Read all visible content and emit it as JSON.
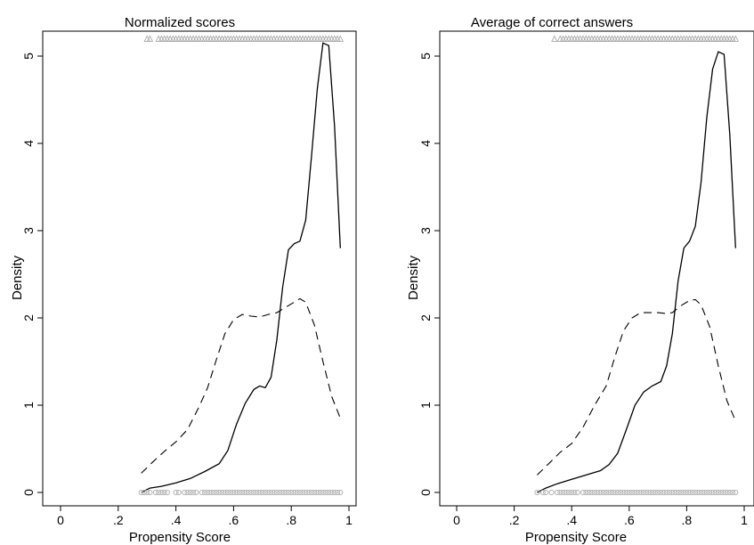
{
  "chart_data": [
    {
      "type": "line",
      "title": "Normalized scores",
      "xlabel": "Propensity Score",
      "ylabel": "Density",
      "xlim": [
        0,
        1
      ],
      "ylim": [
        0,
        5
      ],
      "x_ticks": [
        "0",
        ".2",
        ".4",
        ".6",
        ".8",
        "1"
      ],
      "y_ticks": [
        "0",
        "1",
        "2",
        "3",
        "4",
        "5"
      ],
      "grid": false,
      "series": [
        {
          "style": "solid",
          "points": [
            [
              0.28,
              0.0
            ],
            [
              0.31,
              0.05
            ],
            [
              0.35,
              0.07
            ],
            [
              0.4,
              0.11
            ],
            [
              0.45,
              0.16
            ],
            [
              0.5,
              0.24
            ],
            [
              0.55,
              0.33
            ],
            [
              0.58,
              0.48
            ],
            [
              0.61,
              0.78
            ],
            [
              0.64,
              1.02
            ],
            [
              0.67,
              1.18
            ],
            [
              0.69,
              1.22
            ],
            [
              0.71,
              1.2
            ],
            [
              0.73,
              1.32
            ],
            [
              0.75,
              1.75
            ],
            [
              0.77,
              2.35
            ],
            [
              0.79,
              2.78
            ],
            [
              0.81,
              2.85
            ],
            [
              0.83,
              2.88
            ],
            [
              0.85,
              3.12
            ],
            [
              0.87,
              3.85
            ],
            [
              0.89,
              4.62
            ],
            [
              0.91,
              5.15
            ],
            [
              0.93,
              5.12
            ],
            [
              0.95,
              4.2
            ],
            [
              0.97,
              2.8
            ]
          ]
        },
        {
          "style": "dashed",
          "points": [
            [
              0.28,
              0.22
            ],
            [
              0.32,
              0.35
            ],
            [
              0.36,
              0.47
            ],
            [
              0.4,
              0.58
            ],
            [
              0.44,
              0.72
            ],
            [
              0.48,
              0.98
            ],
            [
              0.51,
              1.2
            ],
            [
              0.54,
              1.52
            ],
            [
              0.57,
              1.82
            ],
            [
              0.6,
              1.98
            ],
            [
              0.63,
              2.04
            ],
            [
              0.66,
              2.02
            ],
            [
              0.69,
              2.01
            ],
            [
              0.72,
              2.04
            ],
            [
              0.75,
              2.06
            ],
            [
              0.78,
              2.12
            ],
            [
              0.81,
              2.18
            ],
            [
              0.83,
              2.22
            ],
            [
              0.85,
              2.18
            ],
            [
              0.88,
              1.92
            ],
            [
              0.91,
              1.5
            ],
            [
              0.94,
              1.1
            ],
            [
              0.97,
              0.85
            ]
          ]
        }
      ],
      "rug_top": {
        "marker": "triangle",
        "y": 5.2,
        "x": [
          0.3,
          0.31,
          0.34,
          0.35,
          0.36,
          0.37,
          0.38,
          0.39,
          0.4,
          0.41,
          0.42,
          0.43,
          0.44,
          0.45,
          0.46,
          0.47,
          0.48,
          0.49,
          0.5,
          0.51,
          0.52,
          0.53,
          0.54,
          0.55,
          0.56,
          0.57,
          0.58,
          0.59,
          0.6,
          0.61,
          0.62,
          0.63,
          0.64,
          0.65,
          0.66,
          0.67,
          0.68,
          0.69,
          0.7,
          0.71,
          0.72,
          0.73,
          0.74,
          0.75,
          0.76,
          0.77,
          0.78,
          0.79,
          0.8,
          0.81,
          0.82,
          0.83,
          0.84,
          0.85,
          0.86,
          0.87,
          0.88,
          0.89,
          0.9,
          0.91,
          0.92,
          0.93,
          0.94,
          0.95,
          0.96,
          0.97
        ]
      },
      "rug_bottom": {
        "marker": "circle",
        "y": 0.0,
        "x": [
          0.28,
          0.29,
          0.3,
          0.31,
          0.33,
          0.34,
          0.35,
          0.36,
          0.37,
          0.4,
          0.41,
          0.43,
          0.44,
          0.45,
          0.46,
          0.47,
          0.49,
          0.5,
          0.51,
          0.52,
          0.53,
          0.54,
          0.55,
          0.56,
          0.57,
          0.58,
          0.59,
          0.6,
          0.61,
          0.62,
          0.63,
          0.64,
          0.65,
          0.66,
          0.67,
          0.68,
          0.69,
          0.7,
          0.71,
          0.72,
          0.73,
          0.74,
          0.75,
          0.76,
          0.77,
          0.78,
          0.79,
          0.8,
          0.81,
          0.82,
          0.83,
          0.84,
          0.85,
          0.86,
          0.87,
          0.88,
          0.89,
          0.9,
          0.91,
          0.92,
          0.93,
          0.94,
          0.95,
          0.96,
          0.97
        ]
      }
    },
    {
      "type": "line",
      "title": "Average of correct answers",
      "xlabel": "Propensity Score",
      "ylabel": "Density",
      "xlim": [
        0,
        1
      ],
      "ylim": [
        0,
        5
      ],
      "x_ticks": [
        "0",
        ".2",
        ".4",
        ".6",
        ".8",
        "1"
      ],
      "y_ticks": [
        "0",
        "1",
        "2",
        "3",
        "4",
        "5"
      ],
      "grid": false,
      "series": [
        {
          "style": "solid",
          "points": [
            [
              0.28,
              0.0
            ],
            [
              0.31,
              0.05
            ],
            [
              0.35,
              0.1
            ],
            [
              0.4,
              0.15
            ],
            [
              0.45,
              0.2
            ],
            [
              0.5,
              0.25
            ],
            [
              0.53,
              0.32
            ],
            [
              0.56,
              0.45
            ],
            [
              0.59,
              0.72
            ],
            [
              0.62,
              1.0
            ],
            [
              0.65,
              1.15
            ],
            [
              0.68,
              1.22
            ],
            [
              0.71,
              1.27
            ],
            [
              0.73,
              1.45
            ],
            [
              0.75,
              1.82
            ],
            [
              0.77,
              2.42
            ],
            [
              0.79,
              2.8
            ],
            [
              0.81,
              2.88
            ],
            [
              0.83,
              3.05
            ],
            [
              0.85,
              3.55
            ],
            [
              0.87,
              4.3
            ],
            [
              0.89,
              4.85
            ],
            [
              0.91,
              5.05
            ],
            [
              0.93,
              5.02
            ],
            [
              0.95,
              4.1
            ],
            [
              0.97,
              2.8
            ]
          ]
        },
        {
          "style": "dashed",
          "points": [
            [
              0.28,
              0.2
            ],
            [
              0.32,
              0.33
            ],
            [
              0.36,
              0.46
            ],
            [
              0.4,
              0.56
            ],
            [
              0.44,
              0.75
            ],
            [
              0.48,
              1.0
            ],
            [
              0.52,
              1.22
            ],
            [
              0.55,
              1.55
            ],
            [
              0.58,
              1.85
            ],
            [
              0.61,
              2.0
            ],
            [
              0.64,
              2.06
            ],
            [
              0.67,
              2.06
            ],
            [
              0.7,
              2.06
            ],
            [
              0.73,
              2.05
            ],
            [
              0.75,
              2.06
            ],
            [
              0.78,
              2.14
            ],
            [
              0.81,
              2.2
            ],
            [
              0.83,
              2.21
            ],
            [
              0.85,
              2.15
            ],
            [
              0.88,
              1.9
            ],
            [
              0.91,
              1.45
            ],
            [
              0.94,
              1.05
            ],
            [
              0.97,
              0.82
            ]
          ]
        }
      ],
      "rug_top": {
        "marker": "triangle",
        "y": 5.2,
        "x": [
          0.34,
          0.36,
          0.37,
          0.38,
          0.39,
          0.4,
          0.41,
          0.42,
          0.43,
          0.44,
          0.45,
          0.46,
          0.47,
          0.48,
          0.49,
          0.5,
          0.51,
          0.52,
          0.53,
          0.54,
          0.55,
          0.56,
          0.57,
          0.58,
          0.59,
          0.6,
          0.61,
          0.62,
          0.63,
          0.64,
          0.65,
          0.66,
          0.67,
          0.68,
          0.69,
          0.7,
          0.71,
          0.72,
          0.73,
          0.74,
          0.75,
          0.76,
          0.77,
          0.78,
          0.79,
          0.8,
          0.81,
          0.82,
          0.83,
          0.84,
          0.85,
          0.86,
          0.87,
          0.88,
          0.89,
          0.9,
          0.91,
          0.92,
          0.93,
          0.94,
          0.95,
          0.96,
          0.97
        ]
      },
      "rug_bottom": {
        "marker": "circle",
        "y": 0.0,
        "x": [
          0.28,
          0.3,
          0.31,
          0.33,
          0.35,
          0.36,
          0.37,
          0.38,
          0.39,
          0.4,
          0.41,
          0.42,
          0.44,
          0.45,
          0.46,
          0.47,
          0.48,
          0.49,
          0.5,
          0.51,
          0.52,
          0.53,
          0.54,
          0.55,
          0.56,
          0.57,
          0.58,
          0.59,
          0.6,
          0.61,
          0.62,
          0.63,
          0.64,
          0.65,
          0.66,
          0.67,
          0.68,
          0.69,
          0.7,
          0.71,
          0.72,
          0.73,
          0.74,
          0.75,
          0.76,
          0.77,
          0.78,
          0.79,
          0.8,
          0.81,
          0.82,
          0.83,
          0.84,
          0.85,
          0.86,
          0.87,
          0.88,
          0.89,
          0.9,
          0.91,
          0.92,
          0.93,
          0.94,
          0.95,
          0.96,
          0.97
        ]
      }
    }
  ]
}
